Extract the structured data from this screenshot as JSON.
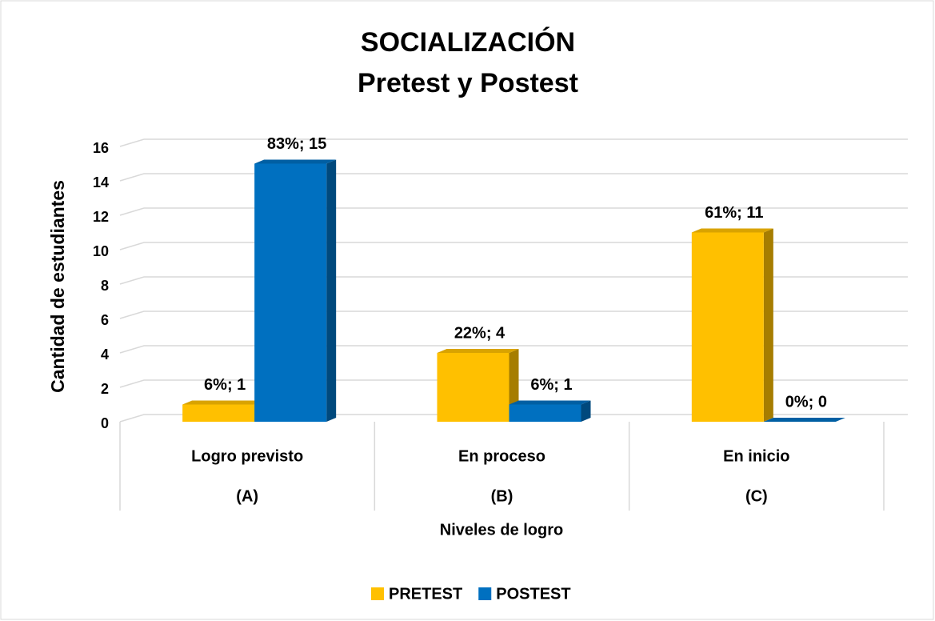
{
  "chart_data": {
    "type": "bar3d",
    "title": "SOCIALIZACIÓN",
    "subtitle": "Pretest y Postest",
    "y_label": "Cantidad de estudiantes",
    "x_label": "Niveles de logro",
    "categories": [
      "Logro previsto",
      "En proceso",
      "En inicio"
    ],
    "category_codes": [
      "(A)",
      "(B)",
      "(C)"
    ],
    "series": [
      {
        "name": "PRETEST",
        "color": "#FFC000",
        "values": [
          1,
          4,
          11
        ],
        "value_labels": [
          "6%; 1",
          "22%; 4",
          "61%; 11"
        ]
      },
      {
        "name": "POSTEST",
        "color": "#0070C0",
        "values": [
          15,
          1,
          0
        ],
        "value_labels": [
          "83%; 15",
          "6%; 1",
          "0%; 0"
        ]
      }
    ],
    "ylim": [
      0,
      16
    ],
    "yticks": [
      0,
      2,
      4,
      6,
      8,
      10,
      12,
      14,
      16
    ],
    "grid": true,
    "legend": "bottom"
  }
}
